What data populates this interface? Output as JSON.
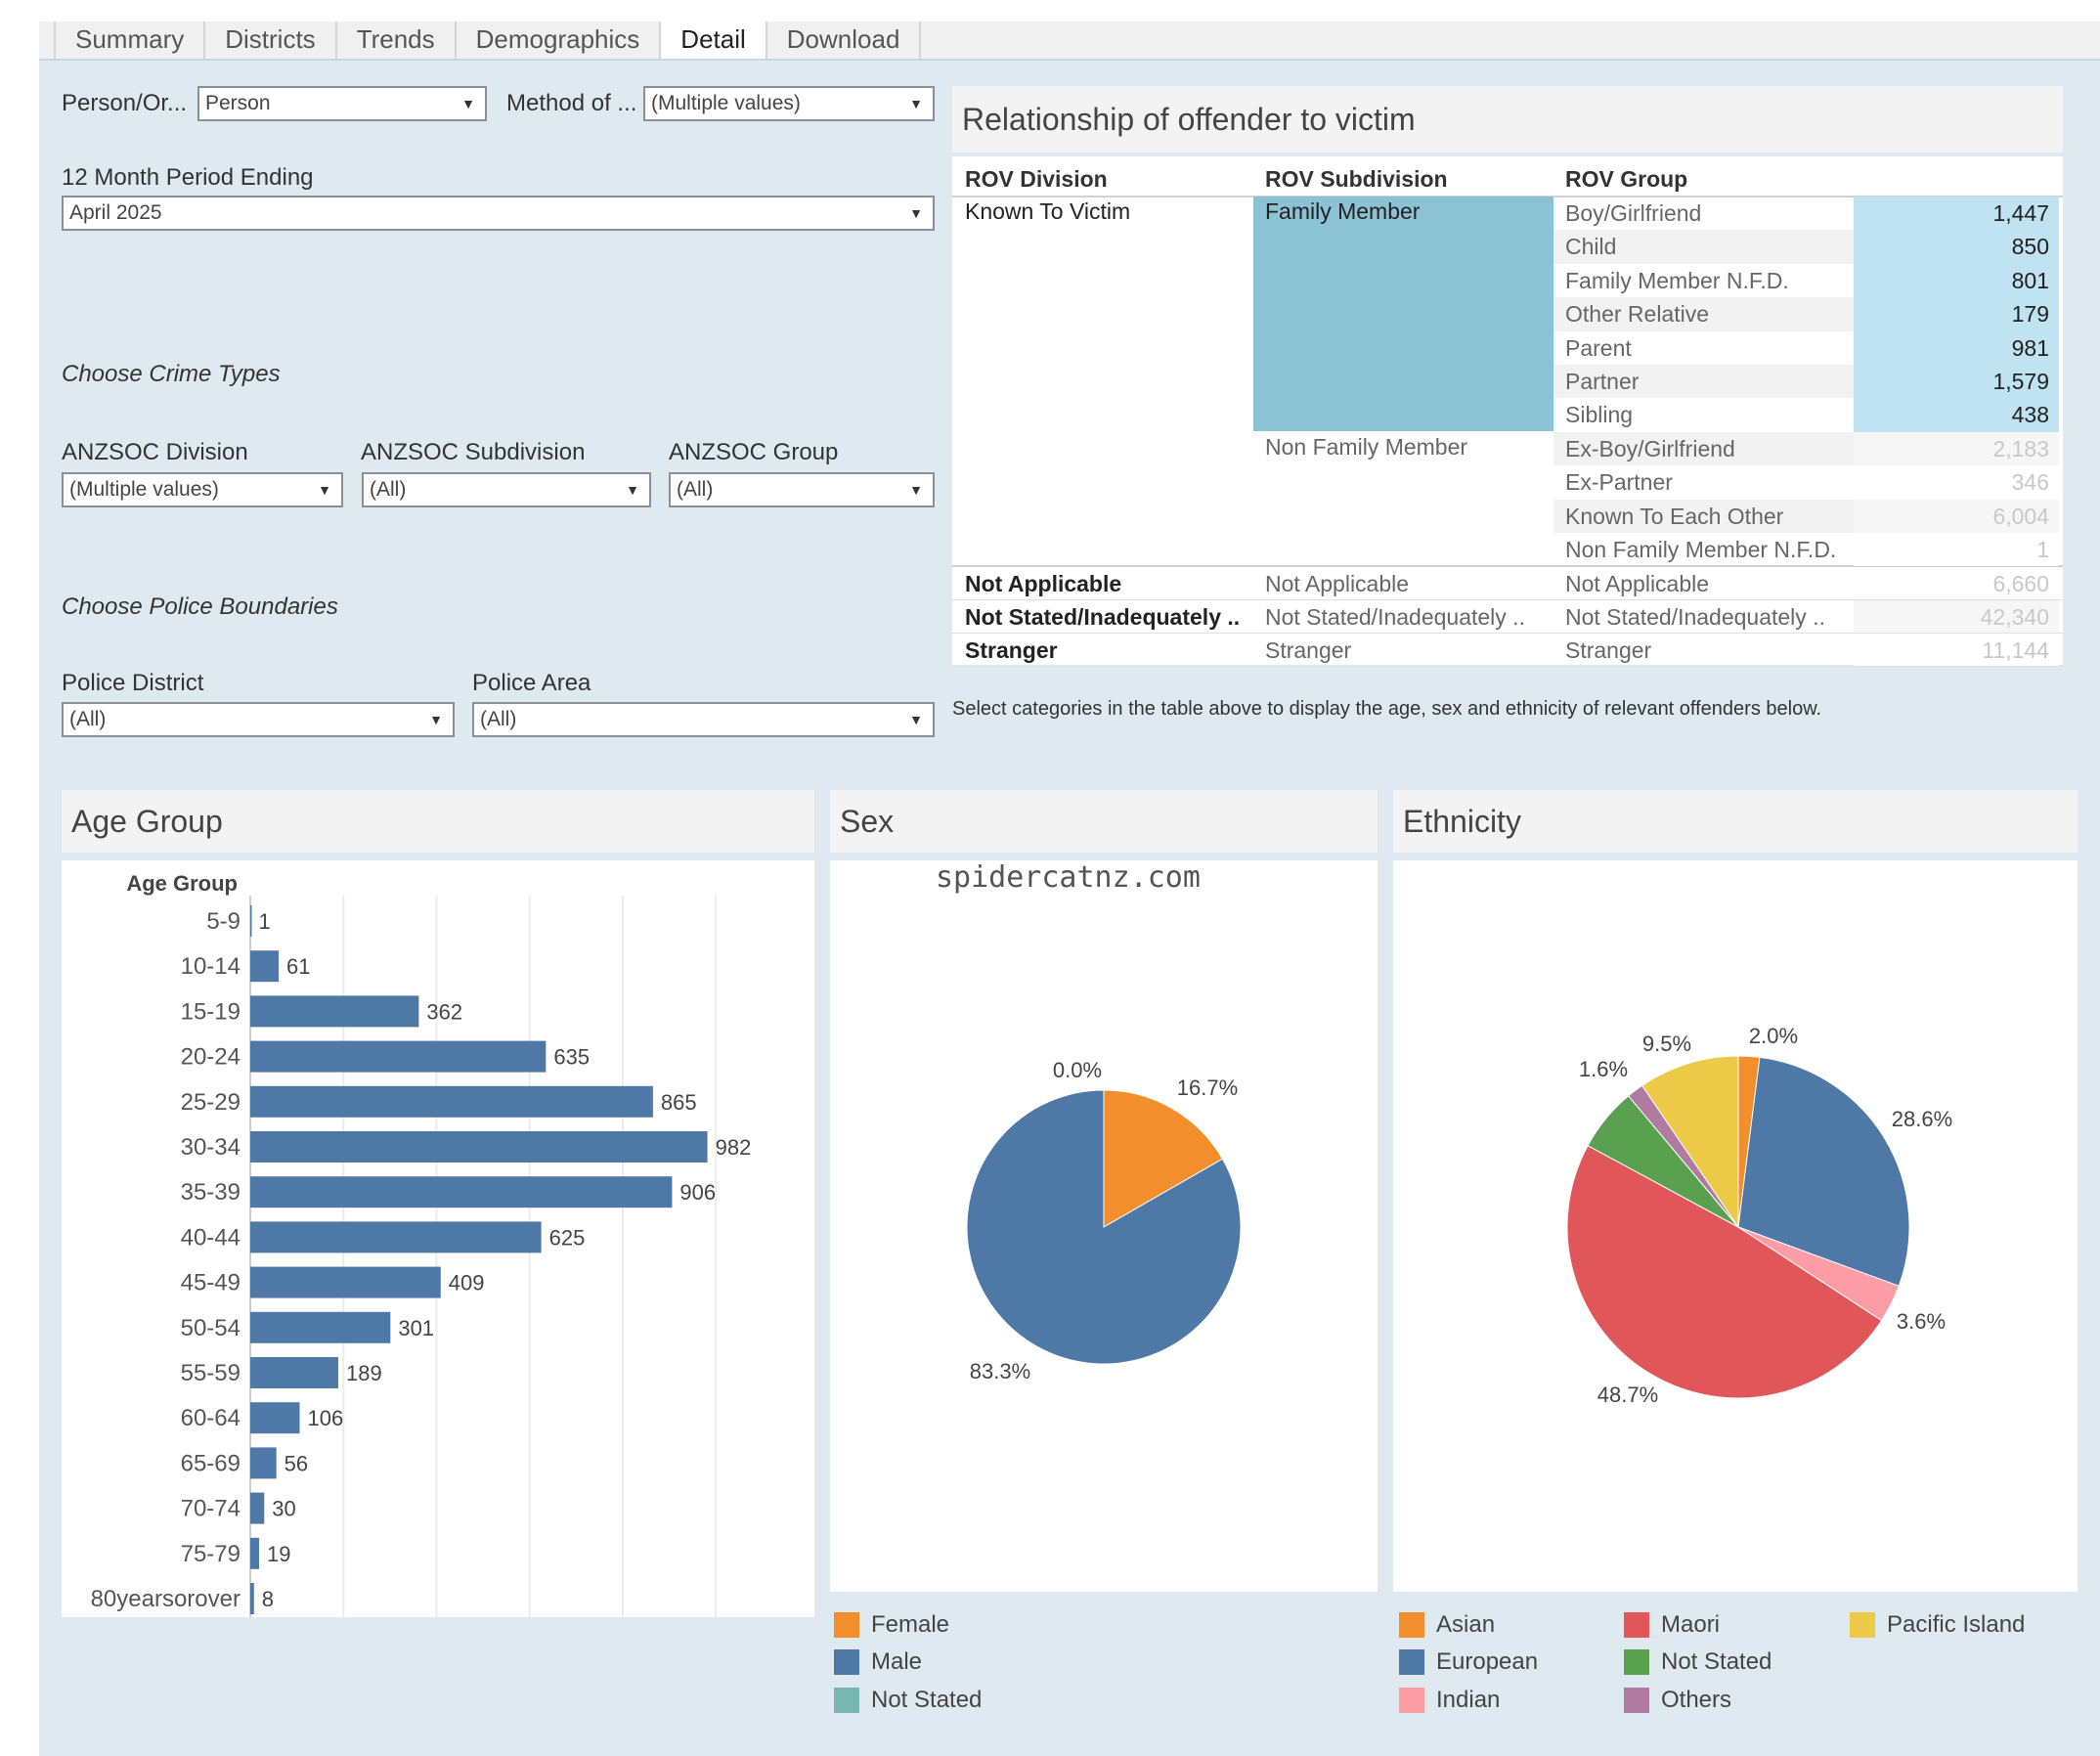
{
  "tabs": [
    {
      "label": "Summary"
    },
    {
      "label": "Districts"
    },
    {
      "label": "Trends"
    },
    {
      "label": "Demographics"
    },
    {
      "label": "Detail",
      "active": true
    },
    {
      "label": "Download"
    }
  ],
  "filters": {
    "person_org_label": "Person/Or...",
    "person_org_value": "Person",
    "method_label": "Method of ...",
    "method_value": "(Multiple values)",
    "period_label": "12 Month Period Ending",
    "period_value": "April 2025",
    "crime_section": "Choose Crime Types",
    "anzsoc_division_label": "ANZSOC Division",
    "anzsoc_division_value": "(Multiple values)",
    "anzsoc_subdivision_label": "ANZSOC Subdivision",
    "anzsoc_subdivision_value": "(All)",
    "anzsoc_group_label": "ANZSOC Group",
    "anzsoc_group_value": "(All)",
    "police_section": "Choose Police Boundaries",
    "police_district_label": "Police District",
    "police_district_value": "(All)",
    "police_area_label": "Police Area",
    "police_area_value": "(All)"
  },
  "rov": {
    "title": "Relationship of offender to victim",
    "headers": [
      "ROV Division",
      "ROV Subdivision",
      "ROV Group"
    ],
    "division_known": "Known To Victim",
    "sub_family": "Family Member",
    "sub_nonfamily": "Non Family Member",
    "rows": [
      {
        "group": "Boy/Girlfriend",
        "value": "1,447",
        "selected": true
      },
      {
        "group": "Child",
        "value": "850",
        "selected": true
      },
      {
        "group": "Family Member N.F.D.",
        "value": "801",
        "selected": true
      },
      {
        "group": "Other Relative",
        "value": "179",
        "selected": true
      },
      {
        "group": "Parent",
        "value": "981",
        "selected": true
      },
      {
        "group": "Partner",
        "value": "1,579",
        "selected": true
      },
      {
        "group": "Sibling",
        "value": "438",
        "selected": true
      },
      {
        "group": "Ex-Boy/Girlfriend",
        "value": "2,183",
        "selected": false
      },
      {
        "group": "Ex-Partner",
        "value": "346",
        "selected": false
      },
      {
        "group": "Known To Each Other",
        "value": "6,004",
        "selected": false
      },
      {
        "group": "Non Family Member N.F.D.",
        "value": "1",
        "selected": false
      }
    ],
    "other_rows": [
      {
        "division": "Not Applicable",
        "subdivision": "Not Applicable",
        "group": "Not Applicable",
        "value": "6,660"
      },
      {
        "division": "Not Stated/Inadequately ..",
        "subdivision": "Not Stated/Inadequately ..",
        "group": "Not Stated/Inadequately ..",
        "value": "42,340"
      },
      {
        "division": "Stranger",
        "subdivision": "Stranger",
        "group": "Stranger",
        "value": "11,144"
      }
    ],
    "note": "Select categories in the  table above to display the age, sex and ethnicity of relevant offenders below."
  },
  "age_panel": {
    "title": "Age Group",
    "axis_label": "Age Group"
  },
  "sex_panel": {
    "title": "Sex",
    "watermark": "spidercatnz.com"
  },
  "eth_panel": {
    "title": "Ethnicity"
  },
  "chart_data": [
    {
      "type": "bar",
      "orientation": "horizontal",
      "ylabel": "Age Group",
      "categories": [
        "5-9",
        "10-14",
        "15-19",
        "20-24",
        "25-29",
        "30-34",
        "35-39",
        "40-44",
        "45-49",
        "50-54",
        "55-59",
        "60-64",
        "65-69",
        "70-74",
        "75-79",
        "80yearsorover"
      ],
      "values": [
        1,
        61,
        362,
        635,
        865,
        982,
        906,
        625,
        409,
        301,
        189,
        106,
        56,
        30,
        19,
        8
      ],
      "color": "#4e79a7",
      "xlim": [
        0,
        1050
      ]
    },
    {
      "type": "pie",
      "labels": [
        "Female",
        "Male",
        "Not Stated"
      ],
      "values": [
        16.7,
        83.3,
        0.0
      ],
      "value_labels": [
        "16.7%",
        "83.3%",
        "0.0%"
      ],
      "colors": [
        "#f28e2b",
        "#4e79a7",
        "#76b7b2"
      ]
    },
    {
      "type": "pie",
      "labels": [
        "Asian",
        "European",
        "Indian",
        "Maori",
        "Not Stated",
        "Others",
        "Pacific Island"
      ],
      "values": [
        2.0,
        28.6,
        3.6,
        48.7,
        6.0,
        1.6,
        9.5
      ],
      "value_labels": [
        "2.0%",
        "28.6%",
        "3.6%",
        "48.7%",
        "",
        "1.6%",
        "9.5%"
      ],
      "colors": [
        "#f28e2b",
        "#4e79a7",
        "#ff9da7",
        "#e15759",
        "#59a14f",
        "#b07aa1",
        "#edc948"
      ]
    }
  ]
}
